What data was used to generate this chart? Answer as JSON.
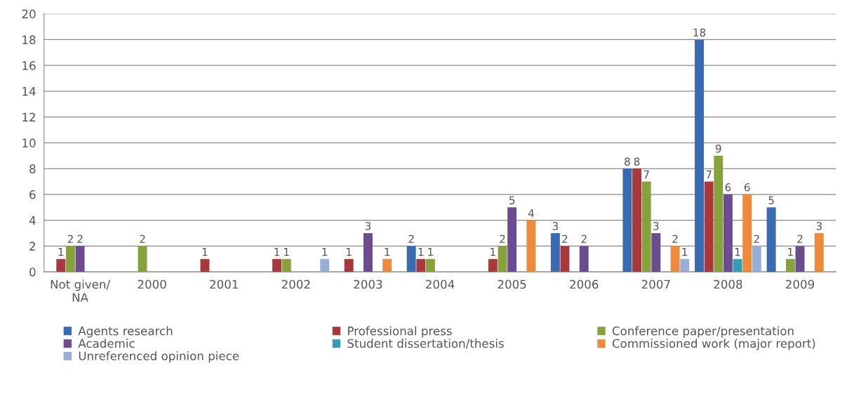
{
  "chart_data": {
    "type": "bar",
    "categories": [
      "Not given/\nNA",
      "2000",
      "2001",
      "2002",
      "2003",
      "2004",
      "2005",
      "2006",
      "2007",
      "2008",
      "2009"
    ],
    "series": [
      {
        "name": "Agents research",
        "color": "#3a6ab0",
        "values": [
          0,
          0,
          0,
          0,
          0,
          2,
          0,
          3,
          8,
          18,
          5
        ],
        "value_labels": [
          null,
          null,
          null,
          null,
          null,
          "2",
          null,
          "3",
          "8",
          "18",
          "5"
        ]
      },
      {
        "name": "Professional press",
        "color": "#a8383c",
        "values": [
          1,
          0,
          1,
          1,
          1,
          1,
          1,
          2,
          8,
          7,
          0
        ],
        "value_labels": [
          "1",
          null,
          "1",
          "1",
          "1",
          "1",
          "1",
          "2",
          "8",
          "7",
          null
        ]
      },
      {
        "name": "Conference paper/presentation",
        "color": "#86a23c",
        "values": [
          2,
          2,
          0,
          1,
          0,
          1,
          2,
          0,
          7,
          9,
          1
        ],
        "value_labels": [
          "2",
          "2",
          null,
          "1",
          null,
          "1",
          "2",
          null,
          "7",
          "9",
          "1"
        ]
      },
      {
        "name": "Academic",
        "color": "#6c4c90",
        "values": [
          2,
          0,
          0,
          0,
          3,
          0,
          5,
          2,
          3,
          6,
          2
        ],
        "value_labels": [
          "2",
          null,
          null,
          null,
          "3",
          null,
          "5",
          "2",
          "3",
          "6",
          "2"
        ]
      },
      {
        "name": "Student dissertation/thesis",
        "color": "#30a0b0",
        "values": [
          0,
          0,
          0,
          0,
          0,
          0,
          0,
          0,
          0,
          1,
          0
        ],
        "value_labels": [
          null,
          null,
          null,
          null,
          null,
          null,
          null,
          null,
          null,
          "1",
          null
        ]
      },
      {
        "name": "Commissioned work (major report)",
        "color": "#ed8a3c",
        "values": [
          0,
          0,
          0,
          0,
          1,
          0,
          4,
          0,
          2,
          6,
          3
        ],
        "value_labels": [
          null,
          null,
          null,
          null,
          "1",
          null,
          "4",
          null,
          "2",
          "6",
          "3"
        ]
      },
      {
        "name": "Unreferenced opinion piece",
        "color": "#98aed8",
        "values": [
          0,
          0,
          0,
          1,
          0,
          0,
          0,
          0,
          1,
          2,
          0
        ],
        "value_labels": [
          null,
          null,
          null,
          "1",
          null,
          null,
          null,
          null,
          "1",
          "2",
          null
        ]
      }
    ],
    "ylim": [
      0,
      20
    ],
    "yticks": [
      0,
      2,
      4,
      6,
      8,
      10,
      12,
      14,
      16,
      18,
      20
    ],
    "grid": "y",
    "legend": "bottom"
  }
}
